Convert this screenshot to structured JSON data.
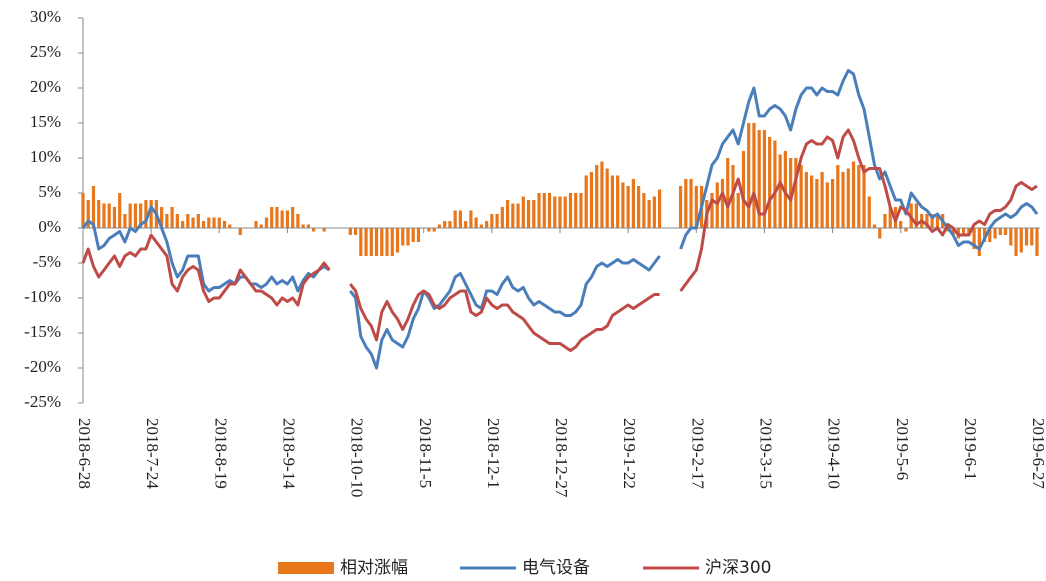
{
  "chart_data": {
    "type": "bar-line",
    "categories": [
      "2018-6-28",
      null,
      null,
      null,
      null,
      null,
      null,
      null,
      null,
      null,
      null,
      null,
      null,
      "2018-7-24",
      null,
      null,
      null,
      null,
      null,
      null,
      null,
      null,
      null,
      null,
      null,
      null,
      "2018-8-19",
      null,
      null,
      null,
      null,
      null,
      null,
      null,
      null,
      null,
      null,
      null,
      null,
      "2018-9-14",
      null,
      null,
      null,
      null,
      null,
      null,
      null,
      null,
      null,
      null,
      null,
      null,
      "2018-10-10",
      null,
      null,
      null,
      null,
      null,
      null,
      null,
      null,
      null,
      null,
      null,
      null,
      "2018-11-5",
      null,
      null,
      null,
      null,
      null,
      null,
      null,
      null,
      null,
      null,
      null,
      null,
      "2018-12-1",
      null,
      null,
      null,
      null,
      null,
      null,
      null,
      null,
      null,
      null,
      null,
      null,
      "2018-12-27",
      null,
      null,
      null,
      null,
      null,
      null,
      null,
      null,
      null,
      null,
      null,
      null,
      "2019-1-22",
      null,
      null,
      null,
      null,
      null,
      null,
      null,
      null,
      null,
      null,
      null,
      null,
      "2019-2-17",
      null,
      null,
      null,
      null,
      null,
      null,
      null,
      null,
      null,
      null,
      null,
      null,
      "2019-3-15",
      null,
      null,
      null,
      null,
      null,
      null,
      null,
      null,
      null,
      null,
      null,
      null,
      "2019-4-10",
      null,
      null,
      null,
      null,
      null,
      null,
      null,
      null,
      null,
      null,
      null,
      null,
      "2019-5-6",
      null,
      null,
      null,
      null,
      null,
      null,
      null,
      null,
      null,
      null,
      null,
      null,
      "2019-6-1",
      null,
      null,
      null,
      null,
      null,
      null,
      null,
      null,
      null,
      null,
      null,
      null,
      "2019-6-27"
    ],
    "series": [
      {
        "name": "相对涨幅",
        "kind": "bar",
        "color": "#e8761b",
        "values": [
          5,
          4,
          6,
          4,
          3.5,
          3.5,
          3,
          5,
          2,
          3.5,
          3.5,
          3.5,
          4,
          4,
          4,
          3,
          2,
          3,
          2,
          1,
          2,
          1.5,
          2,
          1,
          1.5,
          1.5,
          1.5,
          1,
          0.5,
          0,
          -1,
          0,
          0,
          1,
          0.5,
          1.5,
          3,
          3,
          2.5,
          2.5,
          3,
          2,
          0.5,
          0.5,
          -0.5,
          0,
          -0.5,
          0,
          null,
          null,
          null,
          -1,
          -1,
          -4,
          -4,
          -4,
          -4,
          -4,
          -4,
          -4,
          -3.5,
          -2.5,
          -2.5,
          -2,
          -2,
          0,
          -0.5,
          -0.5,
          0.5,
          1,
          1,
          2.5,
          2.5,
          1,
          2.5,
          1.5,
          0.5,
          1,
          2,
          2,
          3,
          4,
          3.5,
          3.5,
          4.5,
          4,
          4,
          5,
          5,
          5,
          4.5,
          4.5,
          4.5,
          5,
          5,
          5,
          7.5,
          8,
          9,
          9.5,
          8.5,
          7.5,
          7.5,
          6.5,
          6,
          7,
          6,
          5,
          4,
          4.5,
          5.5,
          null,
          null,
          null,
          6,
          7,
          7,
          6,
          6,
          4,
          5,
          6.5,
          7,
          10,
          9,
          5,
          11,
          15,
          15,
          14,
          14,
          13,
          12.5,
          10.5,
          11,
          10,
          10,
          9,
          8,
          7.5,
          7,
          8,
          6.5,
          7,
          9,
          8,
          8.5,
          9.5,
          9,
          9,
          4.5,
          0.5,
          -1.5,
          2,
          3,
          3,
          1,
          -0.5,
          3.5,
          3.5,
          2,
          2,
          2,
          2,
          2,
          -0.5,
          -1,
          -1.5,
          -1,
          -1,
          -3,
          -4,
          -2,
          -2,
          -1.5,
          -1,
          -1,
          -2.5,
          -4,
          -3.5,
          -2.5,
          -2.5,
          -4
        ]
      },
      {
        "name": "电气设备",
        "kind": "line",
        "color": "#4a7ebb",
        "values": [
          0,
          1,
          0.5,
          -3,
          -2.5,
          -1.5,
          -1,
          -0.5,
          -2,
          0,
          -0.5,
          0.5,
          1,
          3,
          2,
          0,
          -2,
          -5,
          -7,
          -6,
          -4,
          -4,
          -4,
          -8,
          -9,
          -8.5,
          -8.5,
          -8,
          -7.5,
          -8,
          -7,
          -7,
          -8,
          -8,
          -8.5,
          -8,
          -7,
          -8,
          -7.5,
          -8,
          -7,
          -9,
          -7.5,
          -6.5,
          -7,
          -6,
          -5.5,
          -6,
          null,
          null,
          null,
          -9,
          -10,
          -15.5,
          -17,
          -18,
          -20,
          -16,
          -14.5,
          -16,
          -16.5,
          -17,
          -15.5,
          -13,
          -11.5,
          -9,
          -10,
          -11.5,
          -11,
          -10,
          -9,
          -7,
          -6.5,
          -8,
          -9.5,
          -11,
          -11.5,
          -9,
          -9,
          -9.5,
          -8,
          -7,
          -8.5,
          -9,
          -8.5,
          -10,
          -11,
          -10.5,
          -11,
          -11.5,
          -12,
          -12,
          -12.5,
          -12.5,
          -12,
          -11,
          -8,
          -7,
          -5.5,
          -5,
          -5.5,
          -5,
          -4.5,
          -5,
          -5,
          -4.5,
          -5,
          -5.5,
          -6,
          -5,
          -4,
          null,
          null,
          null,
          -3,
          -1,
          0,
          0,
          3,
          6,
          9,
          10,
          12,
          13,
          14,
          12,
          15,
          18,
          20,
          16,
          16,
          17,
          17.5,
          17,
          16,
          14,
          17,
          19,
          20,
          20,
          19,
          20,
          19.5,
          19.5,
          19,
          21,
          22.5,
          22,
          19,
          17,
          13,
          9,
          7,
          8,
          6,
          4,
          4,
          2,
          5,
          4,
          3,
          2.5,
          1.5,
          2,
          1,
          0,
          -1,
          -2.5,
          -2,
          -2,
          -2.5,
          -3,
          -1.5,
          0,
          1,
          1.5,
          2,
          1.5,
          2,
          3,
          3.5,
          3,
          2
        ]
      },
      {
        "name": "沪深300",
        "kind": "line",
        "color": "#be4b48",
        "values": [
          -5,
          -3,
          -5.5,
          -7,
          -6,
          -5,
          -4,
          -5.5,
          -4,
          -3.5,
          -4,
          -3,
          -3,
          -1,
          -2,
          -3,
          -4,
          -8,
          -9,
          -7,
          -6,
          -5.5,
          -6,
          -9,
          -10.5,
          -10,
          -10,
          -9,
          -8,
          -8,
          -6,
          -7,
          -8,
          -9,
          -9,
          -9.5,
          -10,
          -11,
          -10,
          -10.5,
          -10,
          -11,
          -8,
          -7,
          -6.5,
          -6,
          -5,
          -6,
          null,
          null,
          null,
          -8,
          -9,
          -11.5,
          -13,
          -14,
          -16,
          -12,
          -10.5,
          -12,
          -13,
          -14.5,
          -13,
          -11,
          -9.5,
          -9,
          -9.5,
          -11,
          -11.5,
          -11,
          -10,
          -9.5,
          -9,
          -9,
          -12,
          -12.5,
          -12,
          -10,
          -11,
          -11.5,
          -11,
          -11,
          -12,
          -12.5,
          -13,
          -14,
          -15,
          -15.5,
          -16,
          -16.5,
          -16.5,
          -16.5,
          -17,
          -17.5,
          -17,
          -16,
          -15.5,
          -15,
          -14.5,
          -14.5,
          -14,
          -12.5,
          -12,
          -11.5,
          -11,
          -11.5,
          -11,
          -10.5,
          -10,
          -9.5,
          -9.5,
          null,
          null,
          null,
          -9,
          -8,
          -7,
          -6,
          -3,
          2,
          4,
          3.5,
          5,
          3,
          5,
          7,
          4,
          3,
          5,
          2,
          2,
          4,
          5,
          6.5,
          5,
          4,
          7,
          10,
          12,
          12.5,
          12,
          12,
          13,
          12.5,
          10,
          13,
          14,
          12.5,
          10,
          8,
          8.5,
          8.5,
          8.5,
          6,
          3,
          1,
          3,
          2.5,
          1.5,
          0.5,
          1,
          0.5,
          -0.5,
          0,
          -1,
          0.5,
          0,
          -1,
          -1,
          -1,
          0.5,
          1,
          0.5,
          2,
          2.5,
          2.5,
          3,
          4,
          6,
          6.5,
          6,
          5.5,
          6
        ]
      }
    ],
    "ylim": [
      -25,
      30
    ],
    "yticks": [
      {
        "value": -25,
        "label": "-25%"
      },
      {
        "value": -20,
        "label": "-20%"
      },
      {
        "value": -15,
        "label": "-15%"
      },
      {
        "value": -10,
        "label": "-10%"
      },
      {
        "value": -5,
        "label": "-5%"
      },
      {
        "value": 0,
        "label": "0%"
      },
      {
        "value": 5,
        "label": "5%"
      },
      {
        "value": 10,
        "label": "10%"
      },
      {
        "value": 15,
        "label": "15%"
      },
      {
        "value": 20,
        "label": "20%"
      },
      {
        "value": 25,
        "label": "25%"
      },
      {
        "value": 30,
        "label": "30%"
      }
    ],
    "legend": "bottom"
  }
}
